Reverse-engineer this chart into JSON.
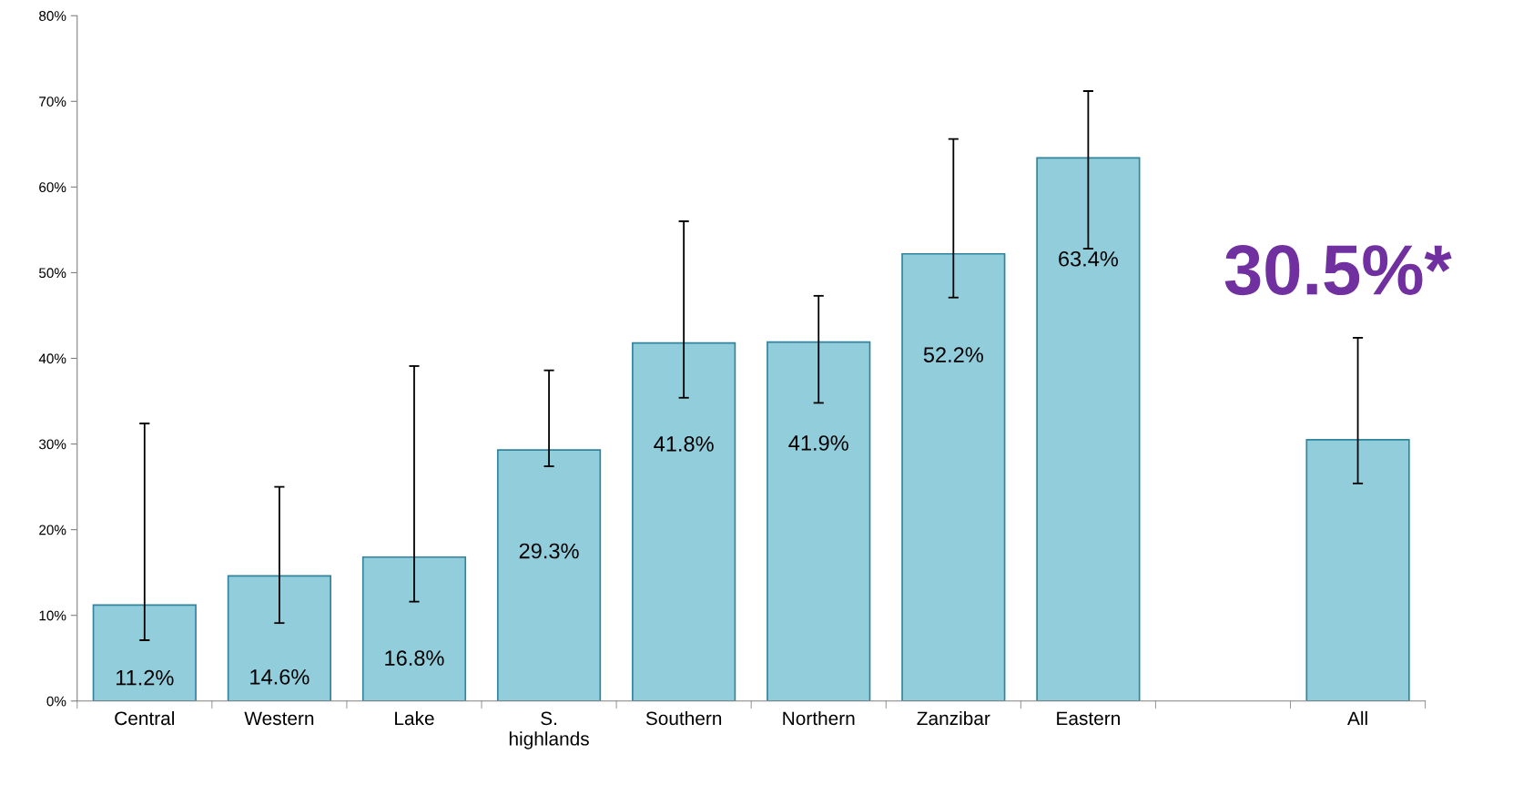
{
  "chart_data": {
    "type": "bar",
    "categories": [
      "Central",
      "Western",
      "Lake",
      "S.\nhighlands",
      "Southern",
      "Northern",
      "Zanzibar",
      "Eastern",
      null,
      "All"
    ],
    "values": [
      11.2,
      14.6,
      16.8,
      29.3,
      41.8,
      41.9,
      52.2,
      63.4,
      null,
      30.5
    ],
    "value_labels": [
      "11.2%",
      "14.6%",
      "16.8%",
      "29.3%",
      "41.8%",
      "41.9%",
      "52.2%",
      "63.4%",
      null,
      null
    ],
    "errors": [
      [
        7.1,
        32.4
      ],
      [
        9.1,
        25.0
      ],
      [
        11.6,
        39.1
      ],
      [
        27.4,
        38.6
      ],
      [
        35.4,
        56.0
      ],
      [
        34.8,
        47.3
      ],
      [
        47.1,
        65.6
      ],
      [
        52.8,
        71.2
      ],
      null,
      [
        25.4,
        42.4
      ]
    ],
    "color": "#92cddc",
    "ylim": [
      0,
      80
    ],
    "yticks": [
      {
        "value": 0,
        "label": "0%"
      },
      {
        "value": 10,
        "label": "10%"
      },
      {
        "value": 20,
        "label": "20%"
      },
      {
        "value": 30,
        "label": "30%"
      },
      {
        "value": 40,
        "label": "40%"
      },
      {
        "value": 50,
        "label": "50%"
      },
      {
        "value": 60,
        "label": "60%"
      },
      {
        "value": 70,
        "label": "70%"
      },
      {
        "value": 80,
        "label": "80%"
      }
    ],
    "annotations": [
      "30.5%*"
    ],
    "grid": false,
    "legend": false
  }
}
